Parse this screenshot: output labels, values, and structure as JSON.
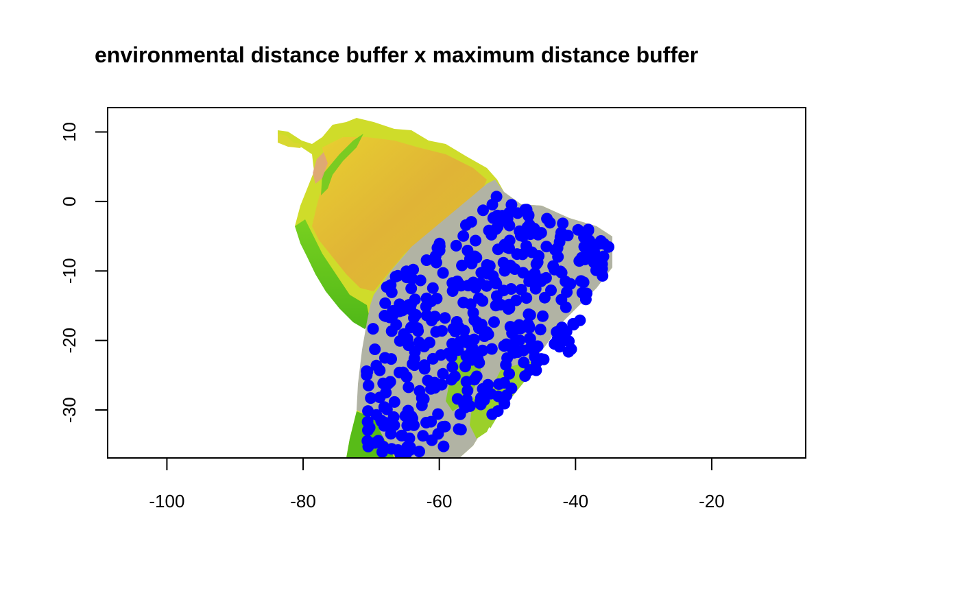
{
  "chart_data": {
    "type": "scatter",
    "title": "environmental distance buffer x maximum distance buffer",
    "xlabel": "",
    "ylabel": "",
    "xlim": [
      -108.7,
      -6.2
    ],
    "ylim": [
      -36.9,
      13.5
    ],
    "x_ticks": [
      -100,
      -80,
      -60,
      -40,
      -20
    ],
    "y_ticks": [
      10,
      0,
      -10,
      -20,
      -30
    ],
    "background": "environmental raster of South America (yellow-orange Amazon, green Andes/south), grey buffer region over eastern Brazil",
    "colors": {
      "points": "#0000ff",
      "buffer": "#b2b2a5",
      "raster_amazon": "#e0b830",
      "raster_green": "#5cc41a",
      "raster_yellow": "#d8e02a"
    },
    "point_cloud": {
      "extent_x": [
        -71,
        -35
      ],
      "extent_y": [
        -37,
        2
      ],
      "note_count": 430
    }
  }
}
